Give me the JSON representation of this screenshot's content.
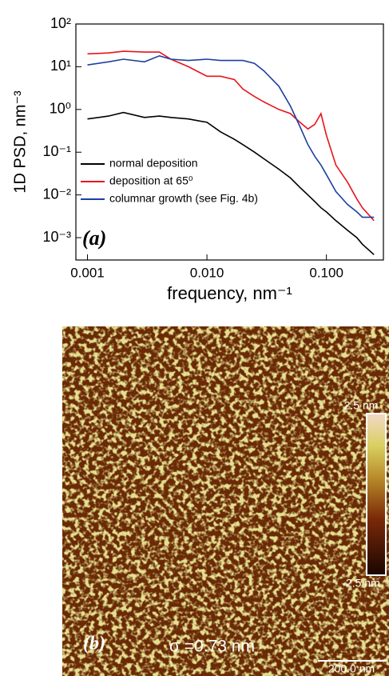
{
  "chart_data": {
    "type": "line",
    "xlabel": "frequency, nm⁻¹",
    "ylabel": "1D PSD, nm⁻³",
    "panel_label": "(a)",
    "x": [
      0.001,
      0.0015,
      0.002,
      0.003,
      0.004,
      0.005,
      0.007,
      0.01,
      0.013,
      0.017,
      0.02,
      0.025,
      0.03,
      0.04,
      0.05,
      0.06,
      0.07,
      0.08,
      0.09,
      0.1,
      0.12,
      0.15,
      0.18,
      0.2,
      0.25
    ],
    "series": [
      {
        "name": "normal deposition",
        "color": "#000000",
        "values": [
          0.6,
          0.7,
          0.85,
          0.65,
          0.7,
          0.65,
          0.6,
          0.5,
          0.3,
          0.2,
          0.15,
          0.1,
          0.07,
          0.04,
          0.025,
          0.015,
          0.01,
          0.007,
          0.005,
          0.004,
          0.0025,
          0.0015,
          0.001,
          0.0007,
          0.0004
        ]
      },
      {
        "name": "deposition at 65⁰",
        "color": "#e8141c",
        "values": [
          20,
          21,
          23,
          22,
          22,
          15,
          10,
          6,
          6,
          5,
          3,
          2,
          1.5,
          1,
          0.8,
          0.5,
          0.35,
          0.45,
          0.8,
          0.25,
          0.05,
          0.02,
          0.008,
          0.005,
          0.0025
        ]
      },
      {
        "name": "columnar growth (see Fig. 4b)",
        "color": "#1f3fa0",
        "values": [
          11,
          13,
          15,
          13,
          18,
          15,
          14,
          15,
          14,
          14,
          14,
          12,
          8,
          3.5,
          1.2,
          0.4,
          0.15,
          0.08,
          0.05,
          0.03,
          0.012,
          0.006,
          0.004,
          0.003,
          0.003
        ]
      }
    ],
    "xscale": "log",
    "yscale": "log",
    "xlim": [
      0.0008,
      0.3
    ],
    "xticks": [
      0.001,
      {
        "value": 0.01,
        "label": "0.010"
      },
      {
        "value": 0.1,
        "label": "0.100"
      }
    ],
    "ylim": [
      0.0003,
      100
    ],
    "yticks": [
      {
        "value": 0.001,
        "label": "10⁻³"
      },
      {
        "value": 0.01,
        "label": "10⁻²"
      },
      {
        "value": 0.1,
        "label": "10⁻¹"
      },
      {
        "value": 1,
        "label": "10⁰"
      },
      {
        "value": 10,
        "label": "10¹"
      },
      {
        "value": 100,
        "label": "10²"
      }
    ],
    "legend": "lower left"
  },
  "afm_image": {
    "panel_label": "(b)",
    "roughness": "σ =0.73 nm",
    "scale_max": "2.5 nm",
    "scale_min": "-2.5 nm",
    "scale_bar": "200.0 nm"
  }
}
